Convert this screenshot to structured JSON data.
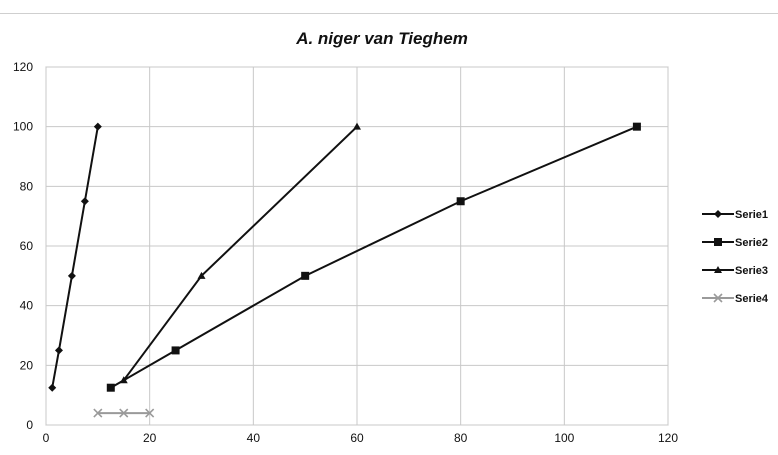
{
  "chart_data": {
    "type": "scatter",
    "title": "A. niger van Tieghem",
    "xlabel": "",
    "ylabel": "",
    "xlim": [
      0,
      120
    ],
    "ylim": [
      0,
      120
    ],
    "x_ticks": [
      0,
      20,
      40,
      60,
      80,
      100,
      120
    ],
    "y_ticks": [
      0,
      20,
      40,
      60,
      80,
      100,
      120
    ],
    "grid": true,
    "legend": "right",
    "series": [
      {
        "name": "Serie1",
        "marker": "diamond",
        "color": "#111111",
        "x": [
          1.2,
          2.5,
          5,
          7.5,
          10
        ],
        "y": [
          12.5,
          25,
          50,
          75,
          100
        ]
      },
      {
        "name": "Serie2",
        "marker": "square",
        "color": "#111111",
        "x": [
          12.5,
          25,
          50,
          80,
          114
        ],
        "y": [
          12.5,
          25,
          50,
          75,
          100
        ]
      },
      {
        "name": "Serie3",
        "marker": "triangle",
        "color": "#111111",
        "x": [
          15,
          30,
          60
        ],
        "y": [
          15,
          50,
          100
        ]
      },
      {
        "name": "Serie4",
        "marker": "x",
        "color": "#9a9a9a",
        "x": [
          10,
          15,
          20
        ],
        "y": [
          4,
          4,
          4
        ]
      }
    ]
  }
}
